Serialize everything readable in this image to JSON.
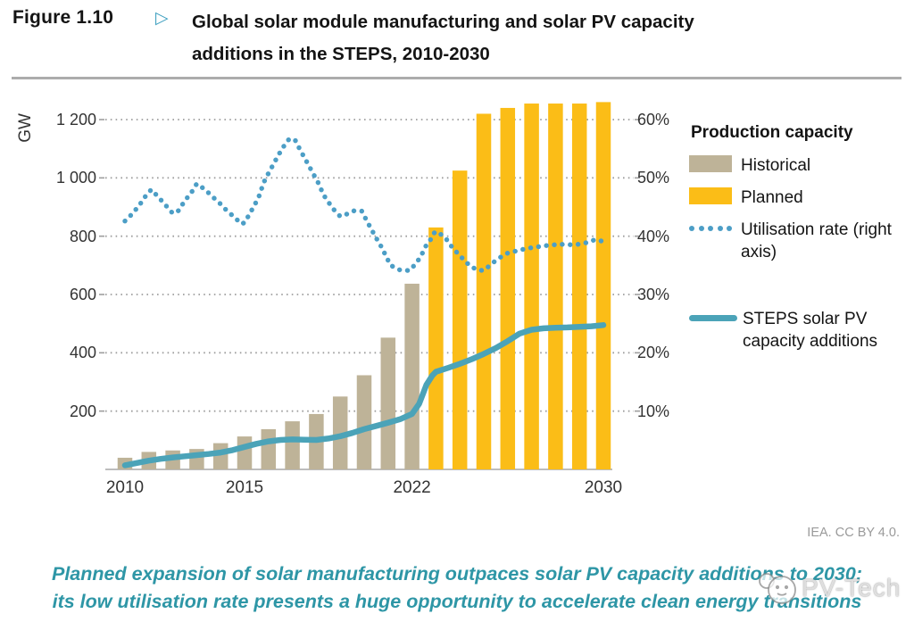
{
  "header": {
    "figure_label": "Figure 1.10",
    "figure_arrow_icon": "▷",
    "title_line1": "Global solar module manufacturing and solar PV capacity",
    "title_line2": "additions in the STEPS, 2010-2030"
  },
  "chart_data": {
    "type": "bar",
    "title": "Global solar module manufacturing and solar PV capacity additions in the STEPS, 2010-2030",
    "left_axis": {
      "title": "GW",
      "ticks": [
        200,
        400,
        600,
        800,
        1000,
        1200
      ],
      "tick_labels": [
        "200",
        "400",
        "600",
        "800",
        "1 000",
        "1 200"
      ],
      "range": [
        0,
        1300
      ],
      "grid": "dotted"
    },
    "right_axis": {
      "ticks": [
        10,
        20,
        30,
        40,
        50,
        60
      ],
      "tick_labels": [
        "10%",
        "20%",
        "30%",
        "40%",
        "50%",
        "60%"
      ],
      "range": [
        0,
        65
      ]
    },
    "x_axis": {
      "range": [
        2010,
        2030
      ],
      "tick_years": [
        2010,
        2015,
        2022,
        2030
      ],
      "tick_labels": [
        "2010",
        "2015",
        "2022",
        "2030"
      ]
    },
    "bars": {
      "name": "Production capacity",
      "unit": "GW",
      "historical_through": 2022,
      "planned_from": 2023,
      "years": [
        2010,
        2011,
        2012,
        2013,
        2014,
        2015,
        2016,
        2017,
        2018,
        2019,
        2020,
        2021,
        2022,
        2023,
        2024,
        2025,
        2026,
        2027,
        2028,
        2029,
        2030
      ],
      "values": [
        40,
        60,
        65,
        70,
        90,
        113,
        138,
        165,
        190,
        250,
        323,
        452,
        637,
        830,
        1025,
        1220,
        1240,
        1255,
        1255,
        1255,
        1260
      ]
    },
    "series": [
      {
        "name": "Utilisation rate (right axis)",
        "axis": "right",
        "style": "dotted",
        "unit": "%",
        "points": [
          [
            2010,
            42.6
          ],
          [
            2010.3,
            43.8
          ],
          [
            2010.6,
            45.3
          ],
          [
            2010.85,
            46.8
          ],
          [
            2011.1,
            48.0
          ],
          [
            2011.4,
            46.7
          ],
          [
            2011.7,
            45.3
          ],
          [
            2012,
            43.9
          ],
          [
            2012.25,
            44.4
          ],
          [
            2012.5,
            46.1
          ],
          [
            2012.75,
            47.3
          ],
          [
            2013,
            49.0
          ],
          [
            2013.35,
            48.0
          ],
          [
            2013.65,
            46.8
          ],
          [
            2014,
            45.5
          ],
          [
            2014.3,
            44.2
          ],
          [
            2014.6,
            43.2
          ],
          [
            2014.85,
            42.1
          ],
          [
            2015,
            42.3
          ],
          [
            2015.25,
            44.1
          ],
          [
            2015.45,
            45.6
          ],
          [
            2015.62,
            47.0
          ],
          [
            2015.8,
            49.2
          ],
          [
            2016,
            50.8
          ],
          [
            2016.2,
            52.3
          ],
          [
            2016.4,
            53.8
          ],
          [
            2016.6,
            55.2
          ],
          [
            2016.85,
            56.6
          ],
          [
            2017.1,
            56.6
          ],
          [
            2017.3,
            55.0
          ],
          [
            2017.5,
            53.5
          ],
          [
            2017.7,
            52.0
          ],
          [
            2017.9,
            50.5
          ],
          [
            2018.1,
            49.0
          ],
          [
            2018.3,
            47.1
          ],
          [
            2018.55,
            45.6
          ],
          [
            2018.8,
            44.2
          ],
          [
            2019,
            43.4
          ],
          [
            2019.35,
            43.9
          ],
          [
            2019.6,
            44.4
          ],
          [
            2019.9,
            44.3
          ],
          [
            2020.1,
            42.7
          ],
          [
            2020.3,
            41.2
          ],
          [
            2020.5,
            39.7
          ],
          [
            2020.7,
            38.3
          ],
          [
            2020.9,
            36.7
          ],
          [
            2021.1,
            35.0
          ],
          [
            2021.5,
            34.2
          ],
          [
            2021.9,
            34.1
          ],
          [
            2022.2,
            35.5
          ],
          [
            2022.4,
            36.8
          ],
          [
            2022.6,
            38.5
          ],
          [
            2022.75,
            39.2
          ],
          [
            2022.9,
            40.5
          ],
          [
            2023.05,
            40.8
          ],
          [
            2023.4,
            39.7
          ],
          [
            2023.6,
            38.5
          ],
          [
            2023.9,
            37.1
          ],
          [
            2024.2,
            35.8
          ],
          [
            2024.45,
            34.8
          ],
          [
            2024.75,
            34.2
          ],
          [
            2025,
            34.1
          ],
          [
            2025.4,
            35.5
          ],
          [
            2025.7,
            36.4
          ],
          [
            2026,
            37.1
          ],
          [
            2026.5,
            37.6
          ],
          [
            2026.8,
            37.9
          ],
          [
            2027.3,
            38.2
          ],
          [
            2027.8,
            38.5
          ],
          [
            2028.3,
            38.6
          ],
          [
            2028.8,
            38.5
          ],
          [
            2029.3,
            38.9
          ],
          [
            2029.65,
            39.4
          ],
          [
            2030,
            39.1
          ]
        ]
      },
      {
        "name": "STEPS solar PV capacity additions",
        "axis": "left",
        "style": "solid",
        "unit": "GW",
        "points": [
          [
            2010,
            14
          ],
          [
            2010.5,
            22
          ],
          [
            2011,
            30
          ],
          [
            2011.5,
            36
          ],
          [
            2012,
            41
          ],
          [
            2012.5,
            45
          ],
          [
            2013,
            49
          ],
          [
            2013.5,
            53
          ],
          [
            2014,
            58
          ],
          [
            2014.5,
            66
          ],
          [
            2015,
            77
          ],
          [
            2015.5,
            88
          ],
          [
            2016,
            96
          ],
          [
            2016.5,
            101
          ],
          [
            2017,
            103
          ],
          [
            2017.5,
            102
          ],
          [
            2018,
            101
          ],
          [
            2018.5,
            106
          ],
          [
            2019,
            114
          ],
          [
            2019.5,
            125
          ],
          [
            2020,
            138
          ],
          [
            2020.5,
            149
          ],
          [
            2021,
            160
          ],
          [
            2021.5,
            172
          ],
          [
            2022,
            190
          ],
          [
            2022.3,
            225
          ],
          [
            2022.6,
            290
          ],
          [
            2022.85,
            322
          ],
          [
            2023,
            335
          ],
          [
            2023.5,
            348
          ],
          [
            2024,
            362
          ],
          [
            2024.5,
            378
          ],
          [
            2025,
            396
          ],
          [
            2025.5,
            416
          ],
          [
            2026,
            440
          ],
          [
            2026.5,
            466
          ],
          [
            2027,
            479
          ],
          [
            2027.5,
            484
          ],
          [
            2028,
            486
          ],
          [
            2028.5,
            487
          ],
          [
            2029,
            489
          ],
          [
            2029.5,
            491
          ],
          [
            2030,
            495
          ]
        ]
      }
    ],
    "colors": {
      "historical": "#BEB398",
      "planned": "#FBBD17",
      "utilisation": "#4C9EC6",
      "steps_line": "#4BA3B8",
      "gridline": "#9E9E9E",
      "baseline": "#BDBDBD",
      "axis_text": "#333333",
      "title_text": "#141414",
      "caption": "#2E96A6",
      "figure_arrow": "#3FA0C0",
      "attribution": "#9A9A9A"
    }
  },
  "legend": {
    "header": "Production capacity",
    "items": [
      {
        "label": "Historical",
        "swatch": "historical"
      },
      {
        "label": "Planned",
        "swatch": "planned"
      },
      {
        "label": "Utilisation rate (right axis)",
        "swatch": "utilisation"
      },
      {
        "label": "STEPS solar PV capacity additions",
        "swatch": "steps_line"
      }
    ]
  },
  "footer": {
    "attribution": "IEA. CC BY 4.0.",
    "caption_line1": "Planned expansion of solar manufacturing outpaces solar PV capacity additions to 2030;",
    "caption_line2": "its low utilisation rate presents a huge opportunity to accelerate clean energy transitions",
    "watermark": "PV-Tech"
  }
}
